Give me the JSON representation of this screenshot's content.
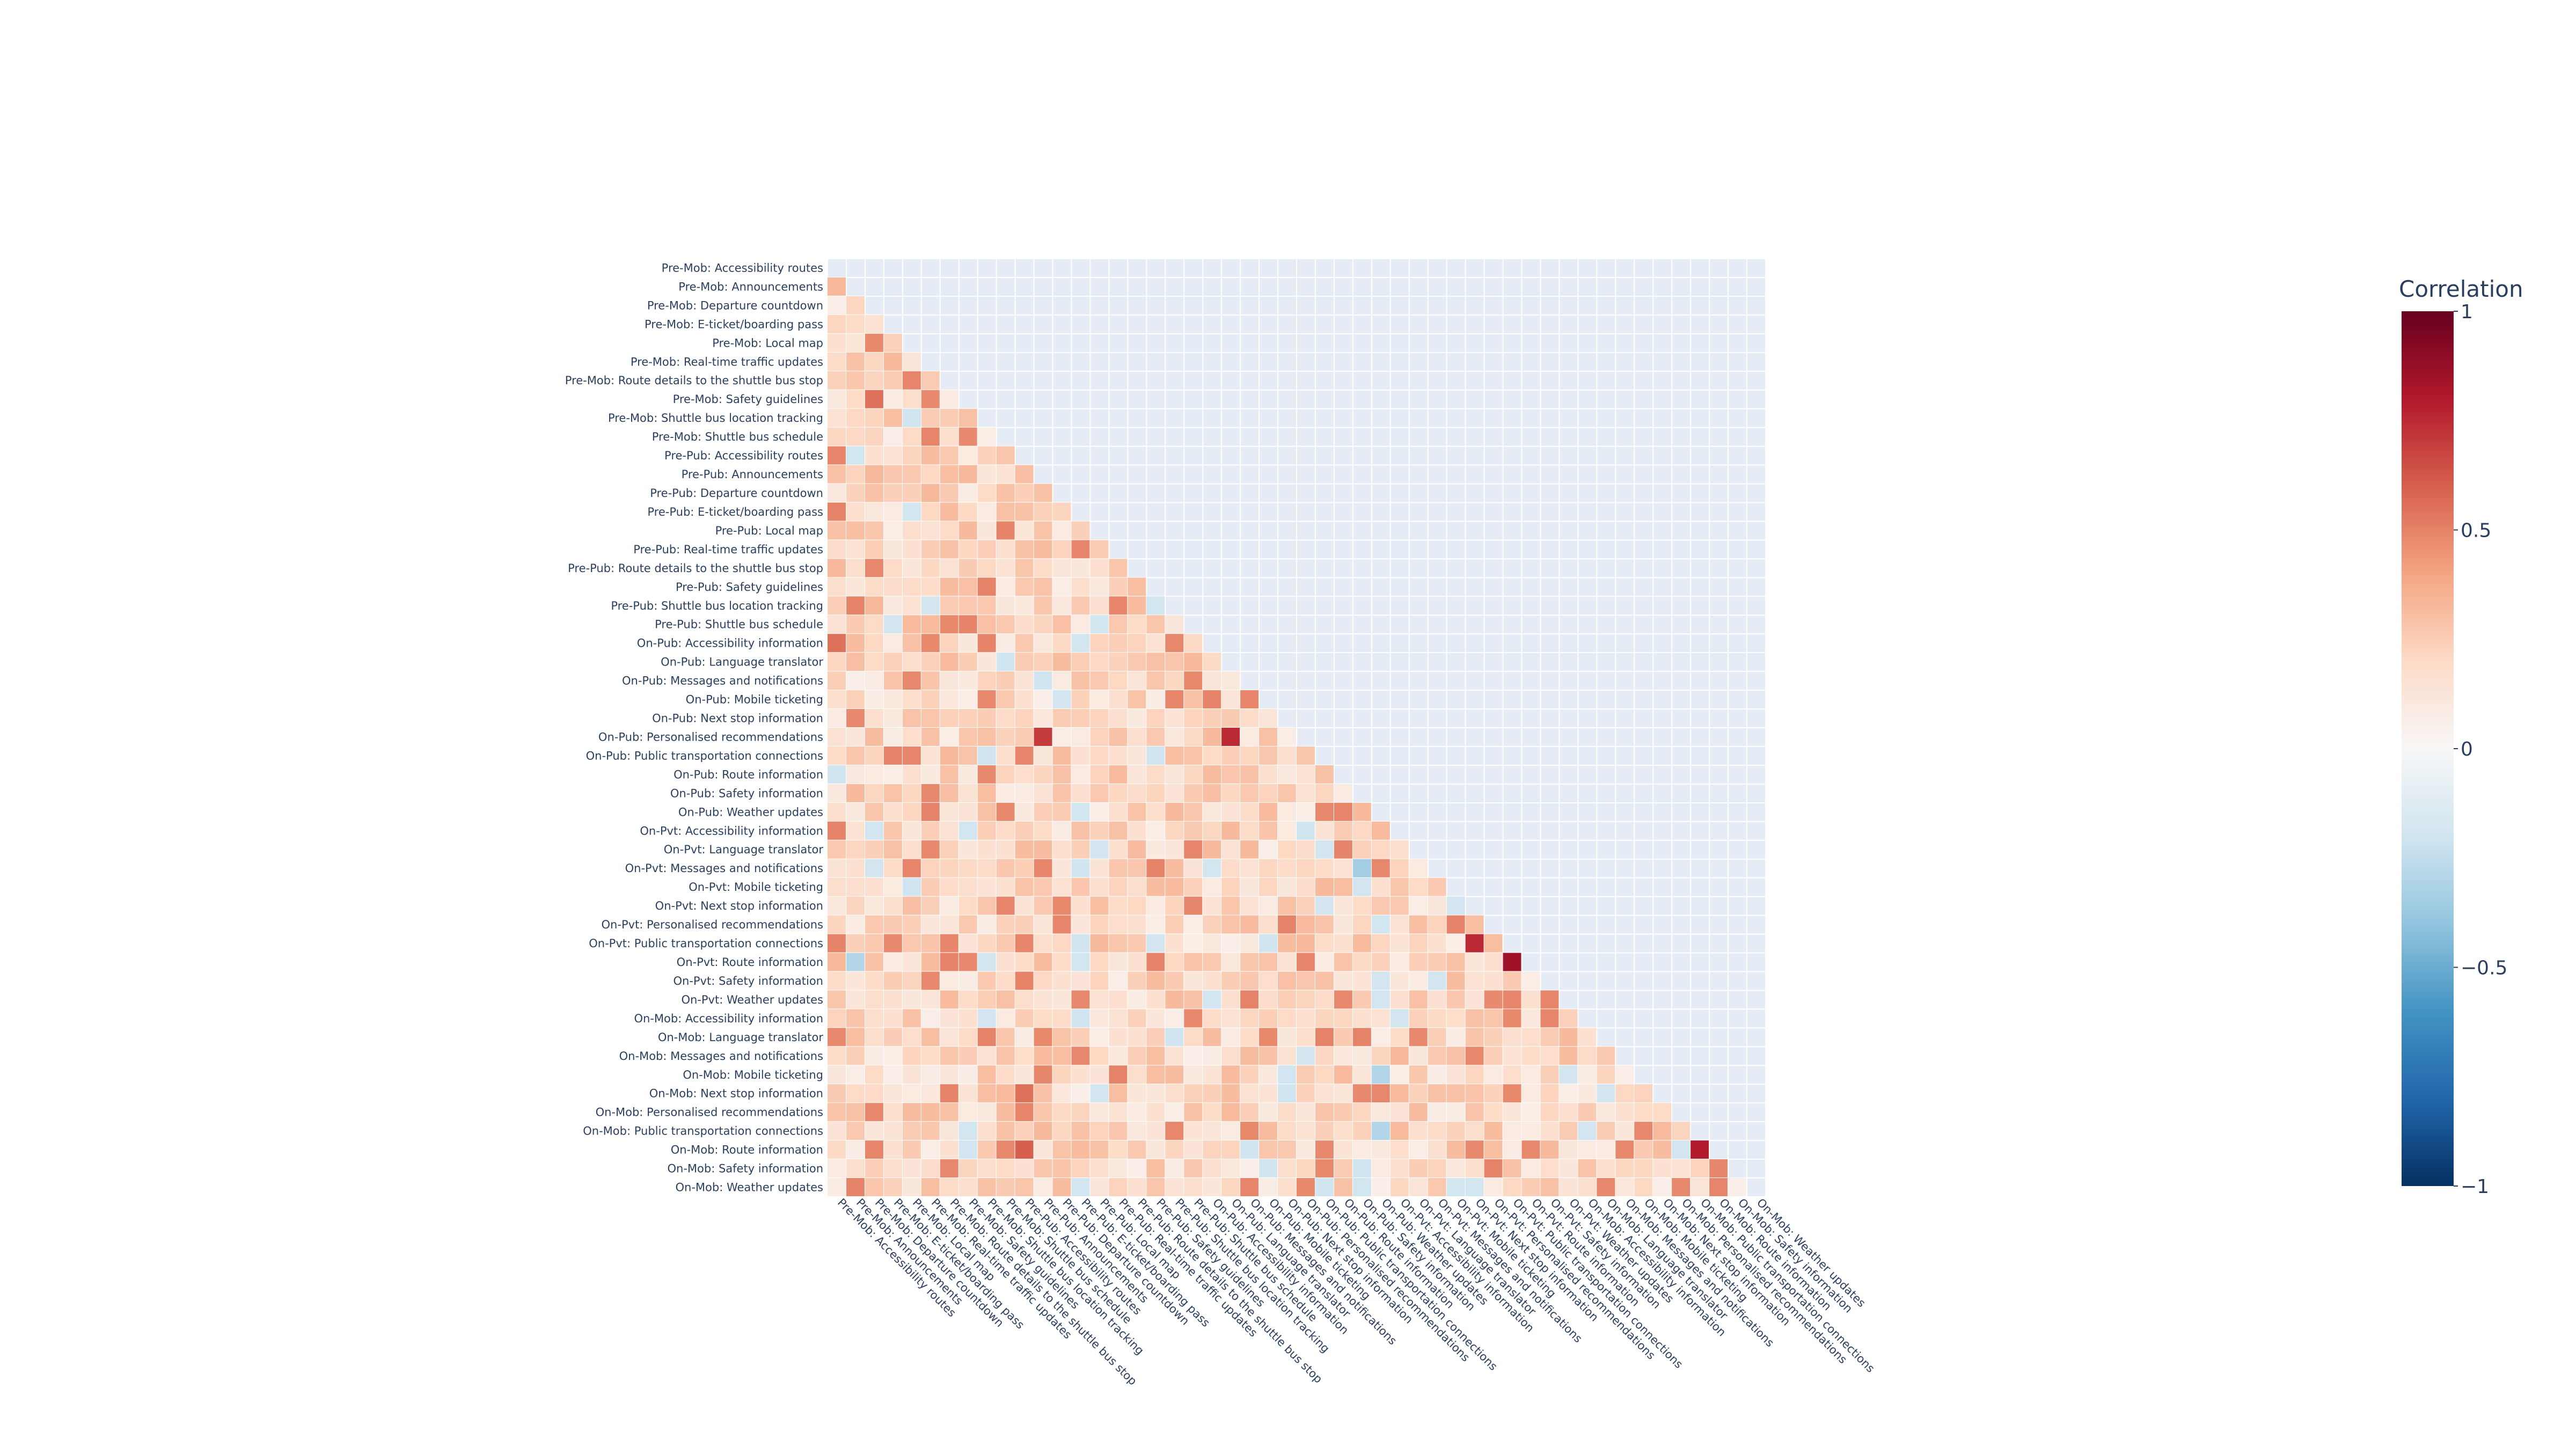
{
  "chart_data": {
    "type": "heatmap",
    "title": "",
    "mask": "lower-triangle",
    "labels": [
      "Pre-Mob: Accessibility routes",
      "Pre-Mob: Announcements",
      "Pre-Mob: Departure countdown",
      "Pre-Mob: E-ticket/boarding pass",
      "Pre-Mob: Local map",
      "Pre-Mob: Real-time traffic updates",
      "Pre-Mob: Route details to the shuttle bus stop",
      "Pre-Mob: Safety guidelines",
      "Pre-Mob: Shuttle bus location tracking",
      "Pre-Mob: Shuttle bus schedule",
      "Pre-Pub: Accessibility routes",
      "Pre-Pub: Announcements",
      "Pre-Pub: Departure countdown",
      "Pre-Pub: E-ticket/boarding pass",
      "Pre-Pub: Local map",
      "Pre-Pub: Real-time traffic updates",
      "Pre-Pub: Route details to the shuttle bus stop",
      "Pre-Pub: Safety guidelines",
      "Pre-Pub: Shuttle bus location tracking",
      "Pre-Pub: Shuttle bus schedule",
      "On-Pub: Accessibility information",
      "On-Pub: Language translator",
      "On-Pub: Messages and notifications",
      "On-Pub: Mobile ticketing",
      "On-Pub: Next stop information",
      "On-Pub: Personalised recommendations",
      "On-Pub: Public transportation connections",
      "On-Pub: Route information",
      "On-Pub: Safety information",
      "On-Pub: Weather updates",
      "On-Pvt: Accessibility information",
      "On-Pvt: Language translator",
      "On-Pvt: Messages and notifications",
      "On-Pvt: Mobile ticketing",
      "On-Pvt: Next stop information",
      "On-Pvt: Personalised recommendations",
      "On-Pvt: Public transportation connections",
      "On-Pvt: Route information",
      "On-Pvt: Safety information",
      "On-Pvt: Weather updates",
      "On-Mob: Accessibility information",
      "On-Mob: Language translator",
      "On-Mob: Messages and notifications",
      "On-Mob: Mobile ticketing",
      "On-Mob: Next stop information",
      "On-Mob: Personalised recommendations",
      "On-Mob: Public transportation connections",
      "On-Mob: Route information",
      "On-Mob: Safety information",
      "On-Mob: Weather updates"
    ],
    "colorbar": {
      "title": "Correlation",
      "range": [
        -1,
        1
      ],
      "ticks": [
        1,
        0.5,
        0,
        -0.5,
        -1
      ],
      "tick_labels": [
        "1",
        "0.5",
        "0",
        "−0.5",
        "−1"
      ],
      "colorscale": [
        "#053061",
        "#2166ac",
        "#4393c3",
        "#92c5de",
        "#d1e5f0",
        "#f7f7f7",
        "#fddbc7",
        "#f4a582",
        "#d6604d",
        "#b2182b",
        "#67001f"
      ]
    },
    "grid": true,
    "background": "#e5ecf6",
    "cell_values_shown": false,
    "highlights": [
      {
        "row": "On-Pub: Personalised recommendations",
        "col": "Pre-Pub: Announcements",
        "value": 0.7
      },
      {
        "row": "On-Pub: Personalised recommendations",
        "col": "On-Pub: Language translator",
        "value": 0.75
      },
      {
        "row": "On-Pvt: Public transportation connections",
        "col": "On-Pvt: Next stop information",
        "value": 0.75
      },
      {
        "row": "On-Pvt: Route information",
        "col": "On-Pvt: Public transportation connections",
        "value": 0.85
      },
      {
        "row": "On-Mob: Route information",
        "col": "On-Mob: Public transportation connections",
        "value": 0.8
      },
      {
        "row": "On-Pvt: Route information",
        "col": "Pre-Mob: Announcements",
        "value": -0.3
      },
      {
        "row": "On-Pvt: Messages and notifications",
        "col": "On-Pub: Safety information",
        "value": -0.35
      },
      {
        "row": "On-Mob: Mobile ticketing",
        "col": "On-Pub: Weather updates",
        "value": -0.3
      },
      {
        "row": "On-Mob: Public transportation connections",
        "col": "On-Pub: Weather updates",
        "value": -0.3
      },
      {
        "row": "On-Pub: Accessibility information",
        "col": "Pre-Mob: Accessibility routes",
        "value": 0.55
      },
      {
        "row": "Pre-Mob: Safety guidelines",
        "col": "Pre-Mob: Departure countdown",
        "value": 0.55
      },
      {
        "row": "On-Mob: Route information",
        "col": "Pre-Pub: Accessibility routes",
        "value": 0.6
      },
      {
        "row": "On-Mob: Next stop information",
        "col": "Pre-Pub: Accessibility routes",
        "value": 0.55
      }
    ]
  }
}
